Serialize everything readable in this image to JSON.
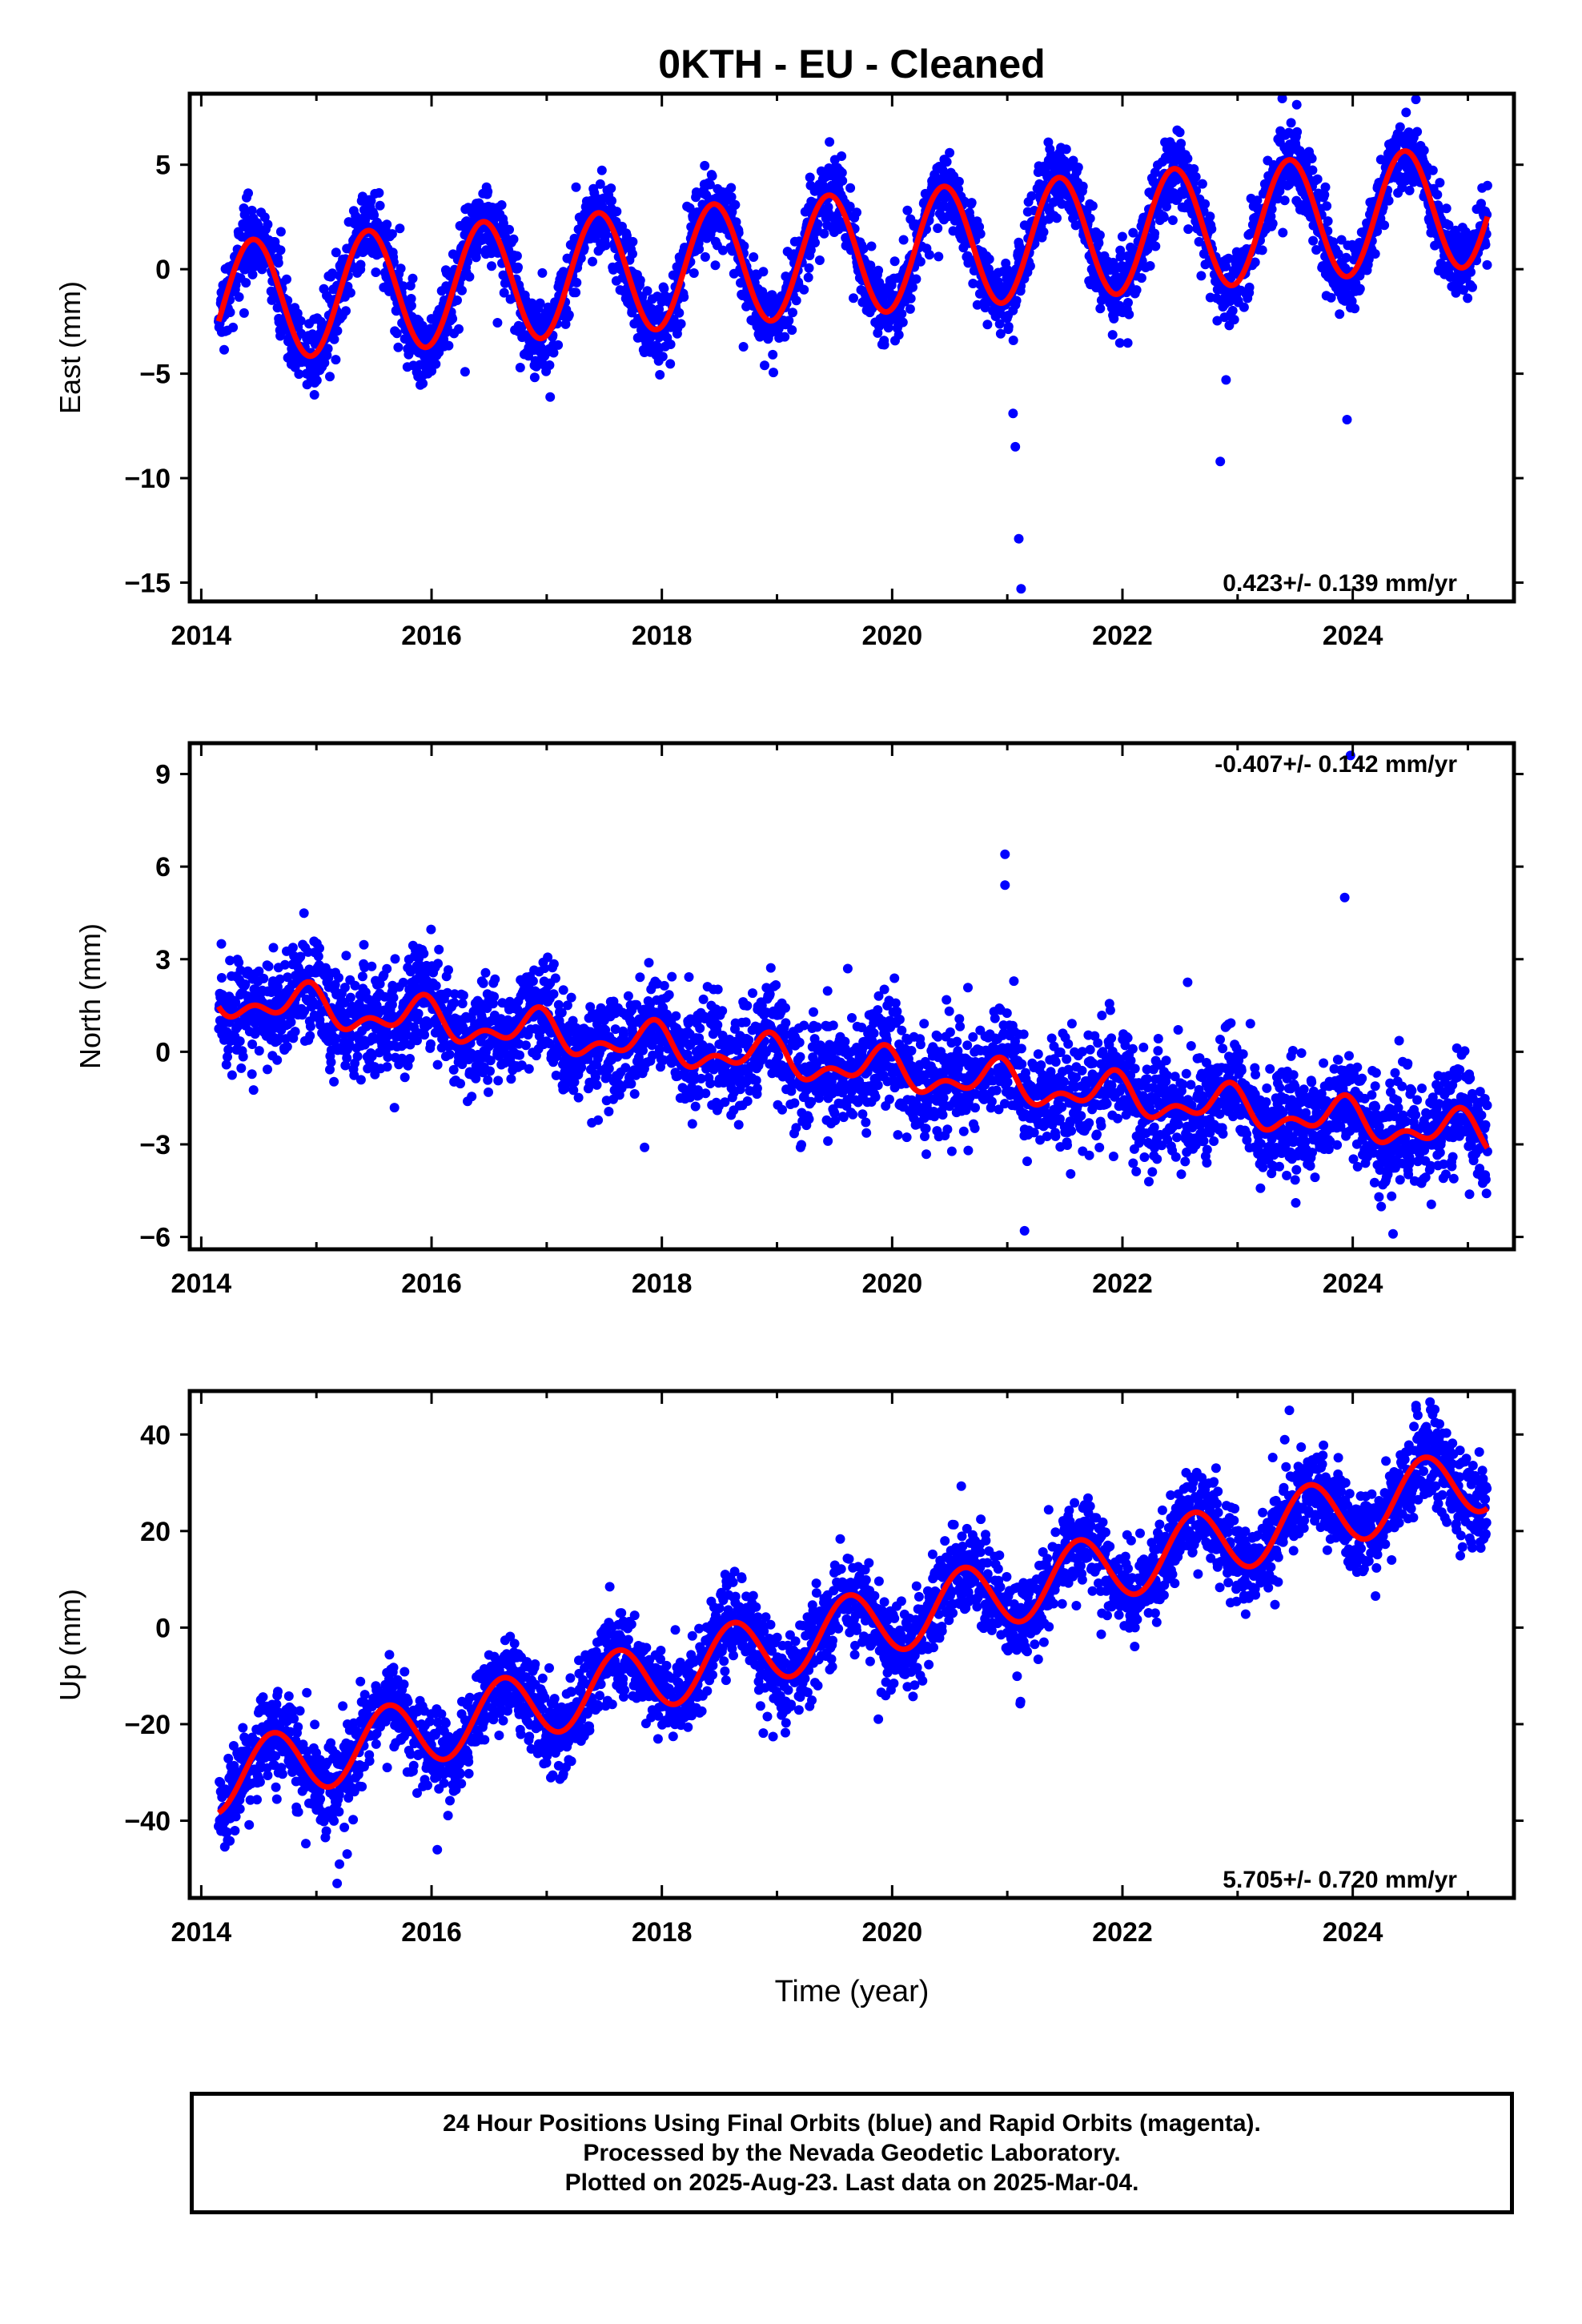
{
  "title": "0KTH  - EU - Cleaned",
  "xlabel": "Time (year)",
  "footer_lines": [
    "24 Hour Positions Using Final Orbits (blue) and Rapid Orbits (magenta).",
    "Processed by the Nevada Geodetic Laboratory.",
    "Plotted on 2025-Aug-23. Last data on 2025-Mar-04."
  ],
  "colors": {
    "data_points": "#0000ff",
    "model_fit": "#ff0000",
    "frame": "#000000"
  },
  "chart_data": [
    {
      "type": "scatter",
      "ylabel": "East (mm)",
      "xlim": [
        2013.9,
        2025.4
      ],
      "ylim": [
        -15.9,
        8.4
      ],
      "xticks": [
        2014,
        2016,
        2018,
        2020,
        2022,
        2024
      ],
      "yticks": [
        5,
        0,
        -5,
        -10,
        -15
      ],
      "rate_label": "0.423+/- 0.139 mm/yr",
      "rate_position": "bottom-right",
      "series": [
        {
          "name": "24 Hour Positions Using Final Orbits (blue)",
          "color": "#0000ff",
          "model": {
            "start": 2014.15,
            "end": 2025.17,
            "ref": 2014.15,
            "offset": -1.6,
            "rate": 0.423,
            "annual_amplitude": 2.9,
            "annual_peak": 2014.45,
            "semiannual_amplitude": 0.0,
            "semiannual_peak": 2014.3,
            "scatter_sd": 0.9
          },
          "outliers": [
            [
              2021.07,
              -8.5
            ],
            [
              2021.1,
              -12.9
            ],
            [
              2021.12,
              -15.3
            ],
            [
              2022.85,
              -9.2
            ],
            [
              2023.95,
              -7.2
            ],
            [
              2022.9,
              -5.3
            ],
            [
              2021.05,
              -6.9
            ]
          ]
        },
        {
          "name": "model fit",
          "color": "#ff0000",
          "role": "model"
        }
      ]
    },
    {
      "type": "scatter",
      "ylabel": "North (mm)",
      "xlim": [
        2013.9,
        2025.4
      ],
      "ylim": [
        -6.4,
        10.0
      ],
      "xticks": [
        2014,
        2016,
        2018,
        2020,
        2022,
        2024
      ],
      "yticks": [
        9,
        6,
        3,
        0,
        -3,
        -6
      ],
      "rate_label": "-0.407+/- 0.142 mm/yr",
      "rate_position": "top-right",
      "series": [
        {
          "name": "24 Hour Positions Using Final Orbits (blue)",
          "color": "#0000ff",
          "model": {
            "start": 2014.15,
            "end": 2025.17,
            "ref": 2014.15,
            "offset": 1.75,
            "rate": -0.407,
            "annual_amplitude": 0.5,
            "annual_peak": 2014.9,
            "semiannual_amplitude": 0.35,
            "semiannual_peak": 2014.45,
            "scatter_sd": 0.85
          },
          "outliers": [
            [
              2020.98,
              6.4
            ],
            [
              2020.98,
              5.4
            ],
            [
              2023.93,
              5.0
            ],
            [
              2023.98,
              9.6
            ],
            [
              2021.15,
              -5.8
            ],
            [
              2024.35,
              -5.9
            ],
            [
              2017.85,
              -3.1
            ]
          ]
        },
        {
          "name": "model fit",
          "color": "#ff0000",
          "role": "model"
        }
      ]
    },
    {
      "type": "scatter",
      "ylabel": "Up (mm)",
      "xlim": [
        2013.9,
        2025.4
      ],
      "ylim": [
        -56,
        49
      ],
      "xticks": [
        2014,
        2016,
        2018,
        2020,
        2022,
        2024
      ],
      "yticks": [
        40,
        20,
        0,
        -20,
        -40
      ],
      "rate_label": "5.705+/- 0.720 mm/yr",
      "rate_position": "bottom-right",
      "series": [
        {
          "name": "24 Hour Positions Using Final Orbits (blue)",
          "color": "#0000ff",
          "model": {
            "start": 2014.15,
            "end": 2025.17,
            "ref": 2014.15,
            "offset": -31.5,
            "rate": 5.705,
            "annual_amplitude": 7.0,
            "annual_peak": 2014.62,
            "semiannual_amplitude": 0.0,
            "semiannual_peak": 2014.3,
            "scatter_sd": 4.5
          },
          "outliers": [
            [
              2015.18,
              -53
            ],
            [
              2015.2,
              -49
            ],
            [
              2023.45,
              45
            ],
            [
              2024.55,
              46
            ],
            [
              2018.55,
              11
            ],
            [
              2016.05,
              -46
            ]
          ]
        },
        {
          "name": "model fit",
          "color": "#ff0000",
          "role": "model"
        }
      ]
    }
  ]
}
